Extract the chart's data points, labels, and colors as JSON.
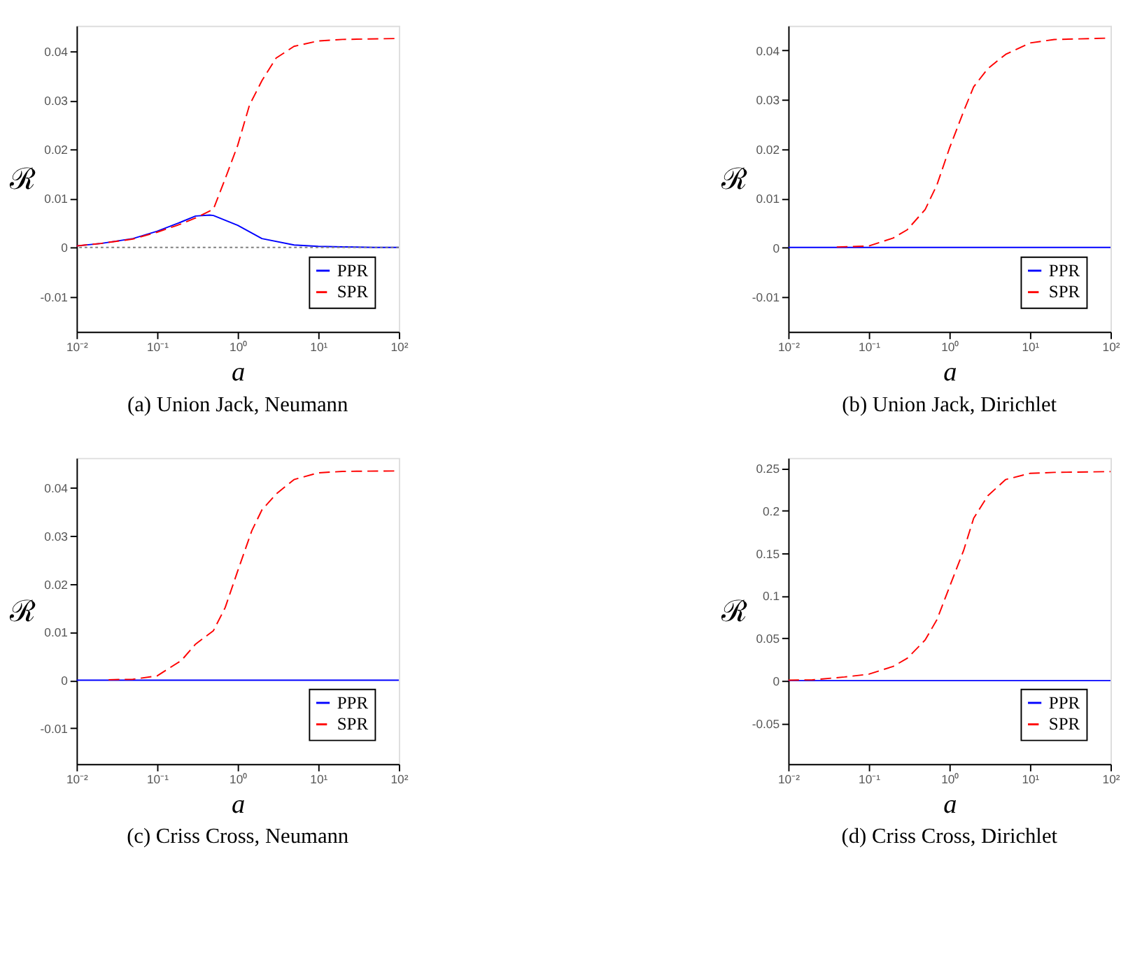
{
  "chart_data": [
    {
      "type": "line",
      "title": "(a) Union Jack, Neumann",
      "xlabel": "a",
      "ylabel": "ℛ",
      "log": "x",
      "grid": false,
      "legend": "bottom right",
      "xlim": [
        0.01,
        100
      ],
      "xticks": [
        {
          "value": 0.01,
          "label": "10⁻²"
        },
        {
          "value": 0.1,
          "label": "10⁻¹"
        },
        {
          "value": 1,
          "label": "10⁰"
        },
        {
          "value": 10,
          "label": "10¹"
        },
        {
          "value": 100,
          "label": "10²"
        }
      ],
      "ylim": [
        -0.0172,
        0.0452
      ],
      "yticks": [
        -0.01,
        0,
        0.01,
        0.02,
        0.03,
        0.04
      ],
      "ref_lines": [
        {
          "axis": "y",
          "value": 0,
          "color": "#808080",
          "line_style": "dotted"
        }
      ],
      "series": [
        {
          "name": "PPR",
          "color": "#0000ff",
          "line_style": "solid",
          "x": [
            0.01,
            0.02,
            0.05,
            0.1,
            0.2,
            0.3,
            0.45,
            0.5,
            1,
            2,
            5,
            10,
            20,
            50,
            100
          ],
          "values": [
            0.0003,
            0.0008,
            0.0018,
            0.0033,
            0.0052,
            0.0064,
            0.0066,
            0.0065,
            0.0045,
            0.0018,
            0.0005,
            0.0002,
            0.0001,
            0,
            0
          ]
        },
        {
          "name": "SPR",
          "color": "#ff0000",
          "line_style": "dashed",
          "x": [
            0.01,
            0.02,
            0.05,
            0.1,
            0.2,
            0.3,
            0.4,
            0.5,
            0.7,
            1,
            1.4,
            2,
            3,
            5,
            10,
            20,
            100
          ],
          "values": [
            0.0003,
            0.0008,
            0.0017,
            0.0031,
            0.0048,
            0.006,
            0.007,
            0.0078,
            0.014,
            0.0208,
            0.029,
            0.034,
            0.0386,
            0.041,
            0.0421,
            0.0424,
            0.0426
          ]
        }
      ]
    },
    {
      "type": "line",
      "title": "(b) Union Jack, Dirichlet",
      "xlabel": "a",
      "ylabel": "ℛ",
      "log": "x",
      "grid": false,
      "legend": "bottom right",
      "xlim": [
        0.01,
        100
      ],
      "xticks": [
        {
          "value": 0.01,
          "label": "10⁻²"
        },
        {
          "value": 0.1,
          "label": "10⁻¹"
        },
        {
          "value": 1,
          "label": "10⁰"
        },
        {
          "value": 10,
          "label": "10¹"
        },
        {
          "value": 100,
          "label": "10²"
        }
      ],
      "ylim": [
        -0.0171,
        0.045
      ],
      "yticks": [
        -0.01,
        0,
        0.01,
        0.02,
        0.03,
        0.04
      ],
      "series": [
        {
          "name": "PPR",
          "color": "#0000ff",
          "line_style": "solid",
          "x": [
            0.01,
            100
          ],
          "values": [
            0,
            0
          ]
        },
        {
          "name": "SPR",
          "color": "#ff0000",
          "line_style": "dashed",
          "x": [
            0.04,
            0.1,
            0.2,
            0.3,
            0.5,
            0.7,
            1,
            1.5,
            2,
            3,
            5,
            10,
            20,
            100
          ],
          "values": [
            0.0001,
            0.0003,
            0.0019,
            0.0036,
            0.0077,
            0.0127,
            0.0201,
            0.0276,
            0.0326,
            0.0363,
            0.0392,
            0.0415,
            0.0422,
            0.0425
          ]
        }
      ]
    },
    {
      "type": "line",
      "title": "(c) Criss Cross, Neumann",
      "xlabel": "a",
      "ylabel": "ℛ",
      "log": "x",
      "grid": false,
      "legend": "bottom right",
      "xlim": [
        0.01,
        100
      ],
      "xticks": [
        {
          "value": 0.01,
          "label": "10⁻²"
        },
        {
          "value": 0.1,
          "label": "10⁻¹"
        },
        {
          "value": 1,
          "label": "10⁰"
        },
        {
          "value": 10,
          "label": "10¹"
        },
        {
          "value": 100,
          "label": "10²"
        }
      ],
      "ylim": [
        -0.0174,
        0.0462
      ],
      "yticks": [
        -0.01,
        0,
        0.01,
        0.02,
        0.03,
        0.04
      ],
      "series": [
        {
          "name": "PPR",
          "color": "#0000ff",
          "line_style": "solid",
          "x": [
            0.01,
            100
          ],
          "values": [
            0,
            0
          ]
        },
        {
          "name": "SPR",
          "color": "#ff0000",
          "line_style": "dashed",
          "x": [
            0.025,
            0.05,
            0.1,
            0.2,
            0.3,
            0.5,
            0.7,
            1,
            1.5,
            2,
            3,
            5,
            10,
            20,
            100
          ],
          "values": [
            0.0001,
            0.0002,
            0.0009,
            0.0041,
            0.0075,
            0.0103,
            0.0151,
            0.0227,
            0.0311,
            0.0354,
            0.0387,
            0.0417,
            0.0431,
            0.0434,
            0.0435
          ]
        }
      ]
    },
    {
      "type": "line",
      "title": "(d) Criss Cross, Dirichlet",
      "xlabel": "a",
      "ylabel": "ℛ",
      "log": "x",
      "grid": false,
      "legend": "bottom right",
      "xlim": [
        0.01,
        100
      ],
      "xticks": [
        {
          "value": 0.01,
          "label": "10⁻²"
        },
        {
          "value": 0.1,
          "label": "10⁻¹"
        },
        {
          "value": 1,
          "label": "10⁰"
        },
        {
          "value": 10,
          "label": "10¹"
        },
        {
          "value": 100,
          "label": "10²"
        }
      ],
      "ylim": [
        -0.098,
        0.262
      ],
      "yticks": [
        -0.05,
        0,
        0.05,
        0.1,
        0.15,
        0.2,
        0.25
      ],
      "series": [
        {
          "name": "PPR",
          "color": "#0000ff",
          "line_style": "solid",
          "x": [
            0.01,
            100
          ],
          "values": [
            0,
            0
          ]
        },
        {
          "name": "SPR",
          "color": "#ff0000",
          "line_style": "dashed",
          "x": [
            0.01,
            0.02,
            0.05,
            0.1,
            0.2,
            0.3,
            0.5,
            0.7,
            1,
            1.5,
            2,
            3,
            5,
            10,
            20,
            100
          ],
          "values": [
            0.0005,
            0.001,
            0.0043,
            0.0076,
            0.0167,
            0.0263,
            0.0478,
            0.0717,
            0.11,
            0.153,
            0.191,
            0.2175,
            0.2366,
            0.2438,
            0.245,
            0.2459
          ]
        }
      ]
    }
  ]
}
